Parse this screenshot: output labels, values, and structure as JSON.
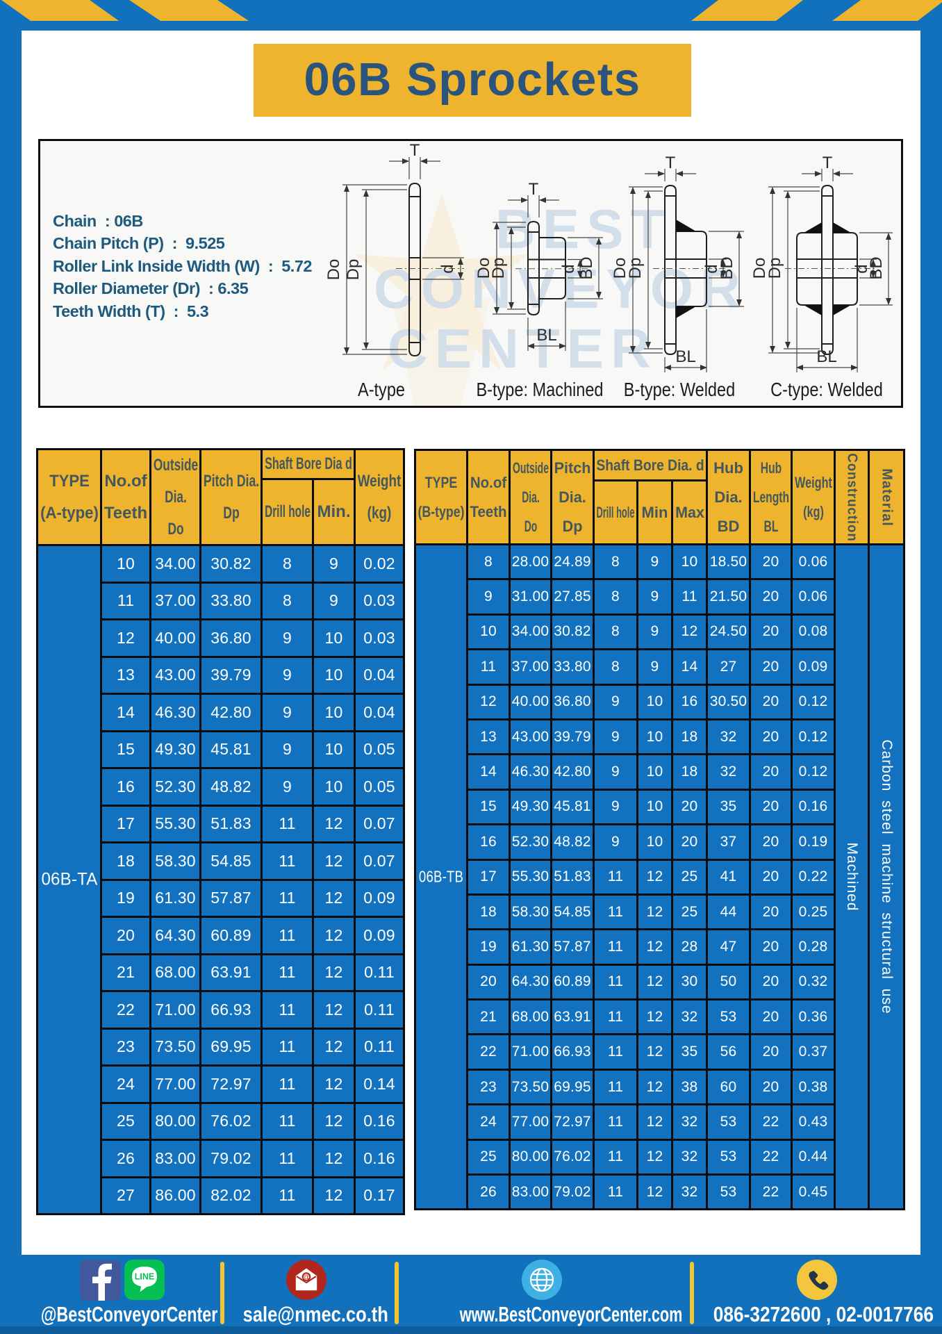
{
  "title": "06B Sprockets",
  "specs": {
    "lines": [
      "Chain  : 06B",
      "Chain Pitch (P)  :  9.525",
      "Roller Link Inside Width (W)  :  5.72",
      "Roller Diameter (Dr)  : 6.35",
      "Teeth Width (T)  :  5.3"
    ]
  },
  "watermark": {
    "line1": "BEST",
    "line2": "CONVEYOR",
    "line3": "CENTER"
  },
  "drawings": {
    "dims": {
      "T": "T",
      "Do": "Do",
      "Dp": "Dp",
      "d": "d",
      "BD": "BD",
      "BL": "BL"
    },
    "types": [
      "A-type",
      "B-type: Machined",
      "B-type: Welded",
      "C-type: Welded"
    ]
  },
  "tables": [
    {
      "name": "a",
      "type_label": "06B-TA",
      "header_row1": [
        {
          "label": "TYPE\n(A-type)",
          "rowspan": 2
        },
        {
          "label": "No.of\nTeeth",
          "rowspan": 2
        },
        {
          "label": "Outside\nDia.\nDo",
          "rowspan": 2
        },
        {
          "label": "Pitch Dia.\nDp",
          "rowspan": 2
        },
        {
          "label": "Shaft Bore Dia d",
          "colspan": 2,
          "group": true
        },
        {
          "label": "Weight\n(kg)",
          "rowspan": 2
        }
      ],
      "header_row2": [
        "Drill hole",
        "Min."
      ],
      "rows": [
        [
          "10",
          "34.00",
          "30.82",
          "8",
          "9",
          "0.02"
        ],
        [
          "11",
          "37.00",
          "33.80",
          "8",
          "9",
          "0.03"
        ],
        [
          "12",
          "40.00",
          "36.80",
          "9",
          "10",
          "0.03"
        ],
        [
          "13",
          "43.00",
          "39.79",
          "9",
          "10",
          "0.04"
        ],
        [
          "14",
          "46.30",
          "42.80",
          "9",
          "10",
          "0.04"
        ],
        [
          "15",
          "49.30",
          "45.81",
          "9",
          "10",
          "0.05"
        ],
        [
          "16",
          "52.30",
          "48.82",
          "9",
          "10",
          "0.05"
        ],
        [
          "17",
          "55.30",
          "51.83",
          "11",
          "12",
          "0.07"
        ],
        [
          "18",
          "58.30",
          "54.85",
          "11",
          "12",
          "0.07"
        ],
        [
          "19",
          "61.30",
          "57.87",
          "11",
          "12",
          "0.09"
        ],
        [
          "20",
          "64.30",
          "60.89",
          "11",
          "12",
          "0.09"
        ],
        [
          "21",
          "68.00",
          "63.91",
          "11",
          "12",
          "0.11"
        ],
        [
          "22",
          "71.00",
          "66.93",
          "11",
          "12",
          "0.11"
        ],
        [
          "23",
          "73.50",
          "69.95",
          "11",
          "12",
          "0.11"
        ],
        [
          "24",
          "77.00",
          "72.97",
          "11",
          "12",
          "0.14"
        ],
        [
          "25",
          "80.00",
          "76.02",
          "11",
          "12",
          "0.16"
        ],
        [
          "26",
          "83.00",
          "79.02",
          "11",
          "12",
          "0.16"
        ],
        [
          "27",
          "86.00",
          "82.02",
          "11",
          "12",
          "0.17"
        ]
      ],
      "merged_trailing": []
    },
    {
      "name": "b",
      "type_label": "06B-TB",
      "header_row1": [
        {
          "label": "TYPE\n(B-type)",
          "rowspan": 2
        },
        {
          "label": "No.of\nTeeth",
          "rowspan": 2
        },
        {
          "label": "Outside\nDia.\nDo",
          "rowspan": 2
        },
        {
          "label": "Pitch\nDia.\nDp",
          "rowspan": 2
        },
        {
          "label": "Shaft Bore Dia. d",
          "colspan": 3,
          "group": true
        },
        {
          "label": "Hub\nDia.\nBD",
          "rowspan": 2
        },
        {
          "label": "Hub\nLength\nBL",
          "rowspan": 2
        },
        {
          "label": "Weight\n(kg)",
          "rowspan": 2
        },
        {
          "label": "Construction",
          "rowspan": 2,
          "vertical": true
        },
        {
          "label": "Material",
          "rowspan": 2,
          "vertical": true
        }
      ],
      "header_row2": [
        "Drill hole",
        "Min",
        "Max"
      ],
      "rows": [
        [
          "8",
          "28.00",
          "24.89",
          "8",
          "9",
          "10",
          "18.50",
          "20",
          "0.06"
        ],
        [
          "9",
          "31.00",
          "27.85",
          "8",
          "9",
          "11",
          "21.50",
          "20",
          "0.06"
        ],
        [
          "10",
          "34.00",
          "30.82",
          "8",
          "9",
          "12",
          "24.50",
          "20",
          "0.08"
        ],
        [
          "11",
          "37.00",
          "33.80",
          "8",
          "9",
          "14",
          "27",
          "20",
          "0.09"
        ],
        [
          "12",
          "40.00",
          "36.80",
          "9",
          "10",
          "16",
          "30.50",
          "20",
          "0.12"
        ],
        [
          "13",
          "43.00",
          "39.79",
          "9",
          "10",
          "18",
          "32",
          "20",
          "0.12"
        ],
        [
          "14",
          "46.30",
          "42.80",
          "9",
          "10",
          "18",
          "32",
          "20",
          "0.12"
        ],
        [
          "15",
          "49.30",
          "45.81",
          "9",
          "10",
          "20",
          "35",
          "20",
          "0.16"
        ],
        [
          "16",
          "52.30",
          "48.82",
          "9",
          "10",
          "20",
          "37",
          "20",
          "0.19"
        ],
        [
          "17",
          "55.30",
          "51.83",
          "11",
          "12",
          "25",
          "41",
          "20",
          "0.22"
        ],
        [
          "18",
          "58.30",
          "54.85",
          "11",
          "12",
          "25",
          "44",
          "20",
          "0.25"
        ],
        [
          "19",
          "61.30",
          "57.87",
          "11",
          "12",
          "28",
          "47",
          "20",
          "0.28"
        ],
        [
          "20",
          "64.30",
          "60.89",
          "11",
          "12",
          "30",
          "50",
          "20",
          "0.32"
        ],
        [
          "21",
          "68.00",
          "63.91",
          "11",
          "12",
          "32",
          "53",
          "20",
          "0.36"
        ],
        [
          "22",
          "71.00",
          "66.93",
          "11",
          "12",
          "35",
          "56",
          "20",
          "0.37"
        ],
        [
          "23",
          "73.50",
          "69.95",
          "11",
          "12",
          "38",
          "60",
          "20",
          "0.38"
        ],
        [
          "24",
          "77.00",
          "72.97",
          "11",
          "12",
          "32",
          "53",
          "22",
          "0.43"
        ],
        [
          "25",
          "80.00",
          "76.02",
          "11",
          "12",
          "32",
          "53",
          "22",
          "0.44"
        ],
        [
          "26",
          "83.00",
          "79.02",
          "11",
          "12",
          "32",
          "53",
          "22",
          "0.45"
        ]
      ],
      "merged_trailing": [
        {
          "label": "Machined"
        },
        {
          "label": "Carbon steel machine structural use"
        }
      ]
    }
  ],
  "footer": {
    "items": [
      {
        "label": "@BestConveyorCenter"
      },
      {
        "label": "sale@nmec.co.th"
      },
      {
        "label": "www.BestConveyorCenter.com"
      },
      {
        "label": "086-3272600 , 02-0017766"
      }
    ]
  }
}
